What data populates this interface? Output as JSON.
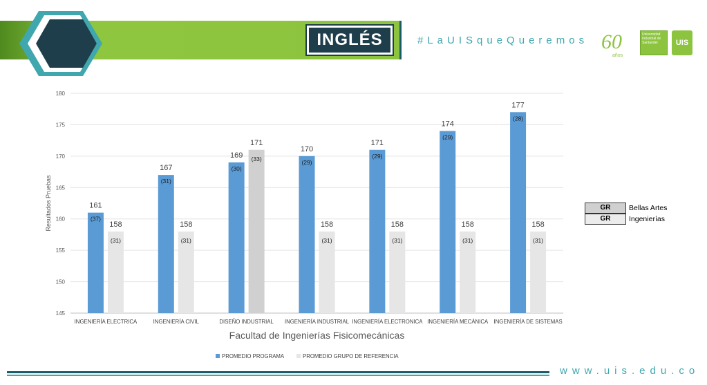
{
  "header": {
    "title": "INGLÉS",
    "hashtag": "#LaUISqueQueremos",
    "years_badge": "60 años",
    "logo_text": "Universidad Industrial de Santander",
    "logo_mark": "UIS"
  },
  "footer": {
    "url": "www.uis.edu.co"
  },
  "colors": {
    "primary_bar": "#5b9bd5",
    "reference_bar_ingenierias": "#e6e6e6",
    "reference_bar_bellas_artes": "#d0d0d0",
    "accent_green": "#8cc43f",
    "accent_teal": "#3fa7ad",
    "navy": "#1e3e4b"
  },
  "reference_legend": [
    {
      "key": "GR",
      "label": "Bellas Artes"
    },
    {
      "key": "GR",
      "label": "Ingenierías"
    }
  ],
  "chart_data": {
    "type": "bar",
    "title": "",
    "xlabel": "Facultad de Ingenierías Fisicomecánicas",
    "ylabel": "Resultados Pruebas",
    "ylim": [
      145,
      180
    ],
    "yticks": [
      "145",
      "150",
      "155",
      "160",
      "165",
      "170",
      "175",
      "180"
    ],
    "grid": true,
    "legend_position": "bottom",
    "categories": [
      "INGENIERÍA ELECTRICA",
      "INGENIERÍA CIVIL",
      "DISEÑO INDUSTRIAL",
      "INGENIERÍA INDUSTRIAL",
      "INGENIERÍA ELECTRONICA",
      "INGENIERÍA MECÁNICA",
      "INGENIERÍA DE SISTEMAS"
    ],
    "series": [
      {
        "name": "PROMEDIO PROGRAMA",
        "values": [
          161,
          167,
          169,
          170,
          171,
          174,
          177
        ],
        "counts": [
          "(37)",
          "(31)",
          "(30)",
          "(29)",
          "(29)",
          "(29)",
          "(28)"
        ]
      },
      {
        "name": "PROMEDIO GRUPO DE REFERENCIA",
        "values": [
          158,
          158,
          171,
          158,
          158,
          158,
          158
        ],
        "counts": [
          "(31)",
          "(31)",
          "(33)",
          "(31)",
          "(31)",
          "(31)",
          "(31)"
        ],
        "group": [
          "Ingenierías",
          "Ingenierías",
          "Bellas Artes",
          "Ingenierías",
          "Ingenierías",
          "Ingenierías",
          "Ingenierías"
        ]
      }
    ]
  }
}
